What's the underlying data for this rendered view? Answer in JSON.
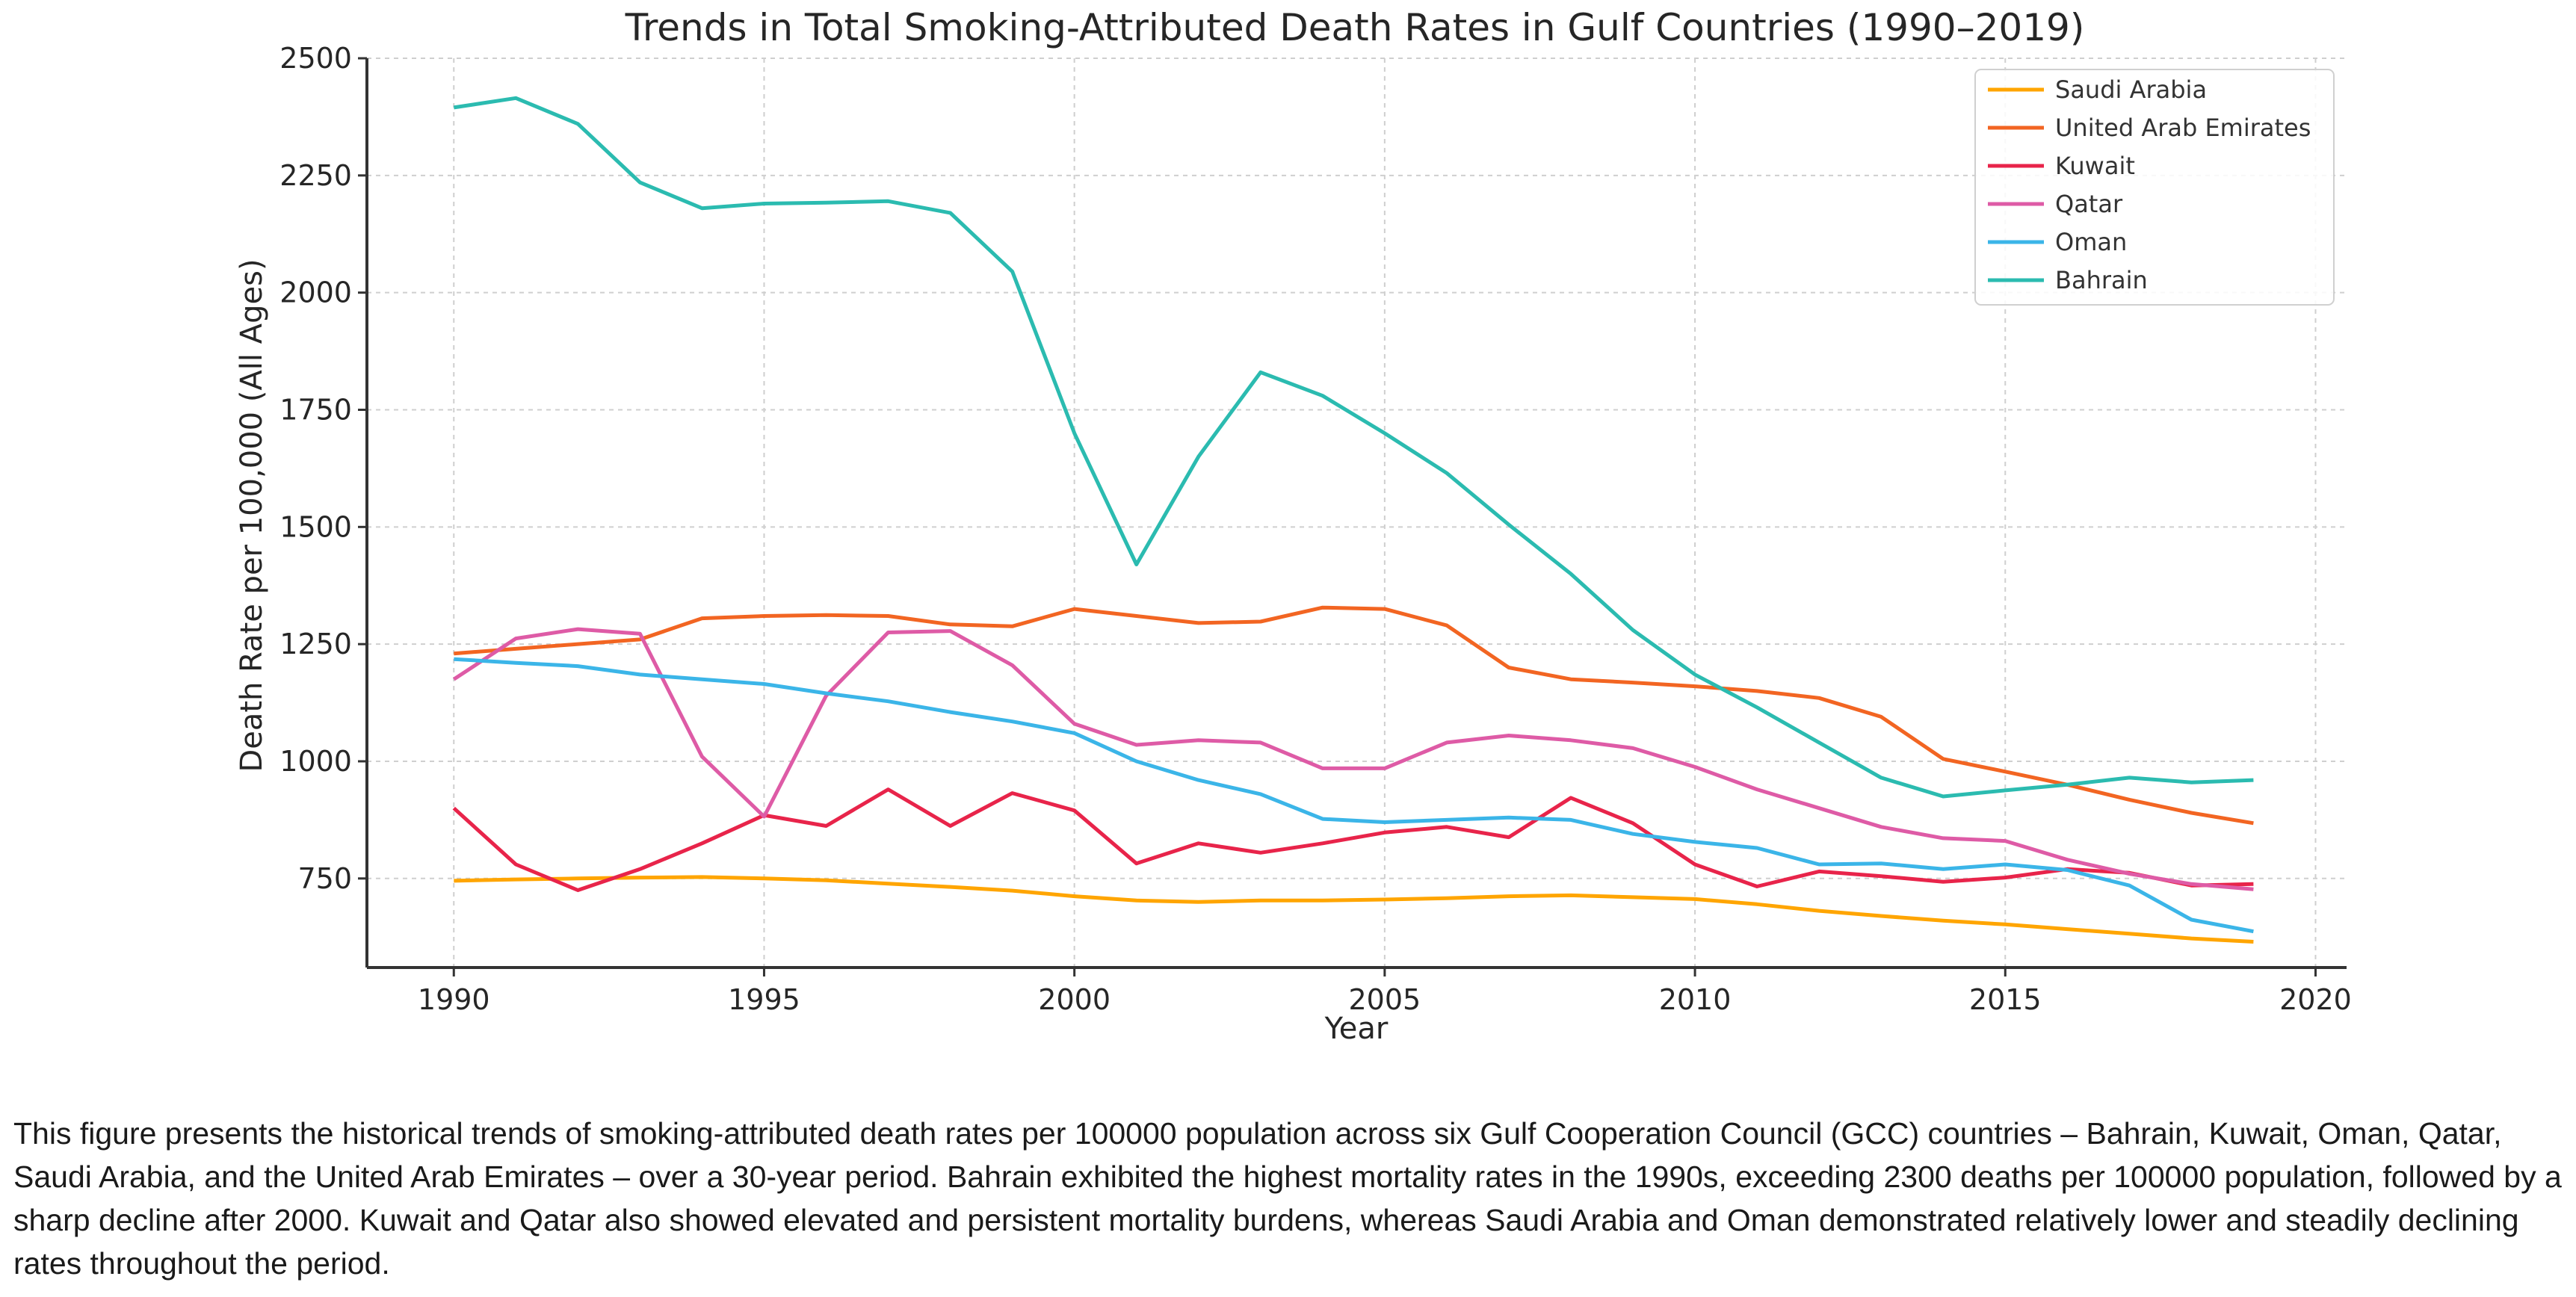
{
  "chart_data": {
    "type": "line",
    "title": "Trends in Total Smoking-Attributed Death Rates in Gulf Countries (1990–2019)",
    "xlabel": "Year",
    "ylabel": "Death Rate per 100,000 (All Ages)",
    "xlim": [
      1988.6,
      2020.5
    ],
    "ylim": [
      560,
      2500
    ],
    "xticks": [
      1990,
      1995,
      2000,
      2005,
      2010,
      2015,
      2020
    ],
    "yticks": [
      750,
      1000,
      1250,
      1500,
      1750,
      2000,
      2250,
      2500
    ],
    "grid": true,
    "legend_position": "top-right",
    "x": [
      1990,
      1991,
      1992,
      1993,
      1994,
      1995,
      1996,
      1997,
      1998,
      1999,
      2000,
      2001,
      2002,
      2003,
      2004,
      2005,
      2006,
      2007,
      2008,
      2009,
      2010,
      2011,
      2012,
      2013,
      2014,
      2015,
      2016,
      2017,
      2018,
      2019
    ],
    "series": [
      {
        "name": "Saudi Arabia",
        "color": "#FFA500",
        "values": [
          745,
          748,
          750,
          752,
          753,
          750,
          746,
          739,
          732,
          724,
          712,
          703,
          700,
          703,
          703,
          705,
          708,
          712,
          714,
          710,
          706,
          695,
          681,
          670,
          660,
          652,
          642,
          632,
          622,
          615
        ]
      },
      {
        "name": "United Arab Emirates",
        "color": "#F26522",
        "values": [
          1230,
          1240,
          1250,
          1260,
          1305,
          1310,
          1312,
          1310,
          1292,
          1288,
          1325,
          1310,
          1295,
          1298,
          1328,
          1325,
          1290,
          1200,
          1175,
          1168,
          1160,
          1150,
          1135,
          1095,
          1005,
          978,
          950,
          918,
          890,
          868
        ]
      },
      {
        "name": "Kuwait",
        "color": "#E8244A",
        "values": [
          900,
          780,
          725,
          770,
          825,
          885,
          862,
          940,
          862,
          932,
          895,
          782,
          825,
          805,
          825,
          848,
          860,
          838,
          922,
          868,
          780,
          733,
          765,
          755,
          743,
          752,
          770,
          762,
          735,
          738
        ]
      },
      {
        "name": "Qatar",
        "color": "#DE5BA6",
        "values": [
          1175,
          1262,
          1282,
          1272,
          1010,
          882,
          1140,
          1275,
          1278,
          1205,
          1080,
          1035,
          1045,
          1040,
          985,
          985,
          1040,
          1055,
          1045,
          1028,
          988,
          940,
          900,
          860,
          836,
          830,
          790,
          760,
          738,
          727
        ]
      },
      {
        "name": "Oman",
        "color": "#3BB5E8",
        "values": [
          1218,
          1210,
          1203,
          1185,
          1175,
          1165,
          1145,
          1128,
          1105,
          1085,
          1060,
          1000,
          960,
          930,
          877,
          870,
          875,
          880,
          875,
          845,
          828,
          815,
          780,
          782,
          770,
          780,
          768,
          735,
          662,
          637
        ]
      },
      {
        "name": "Bahrain",
        "color": "#2BBBB0",
        "values": [
          2395,
          2415,
          2360,
          2235,
          2180,
          2190,
          2192,
          2195,
          2170,
          2045,
          1700,
          1420,
          1650,
          1830,
          1780,
          1700,
          1615,
          1505,
          1400,
          1280,
          1185,
          1115,
          1040,
          965,
          925,
          938,
          950,
          965,
          955,
          960
        ]
      }
    ]
  },
  "caption": "This figure presents the historical trends of smoking-attributed death rates per 100000 population across six Gulf Cooperation Council (GCC) countries – Bahrain, Kuwait, Oman, Qatar, Saudi Arabia, and the United Arab Emirates – over a 30-year period. Bahrain exhibited the highest mortality rates in the 1990s, exceeding 2300 deaths per 100000 population, followed by a sharp decline after 2000. Kuwait and Qatar also showed elevated and persistent mortality burdens, whereas Saudi Arabia and Oman demonstrated relatively lower and steadily declining rates throughout the period."
}
